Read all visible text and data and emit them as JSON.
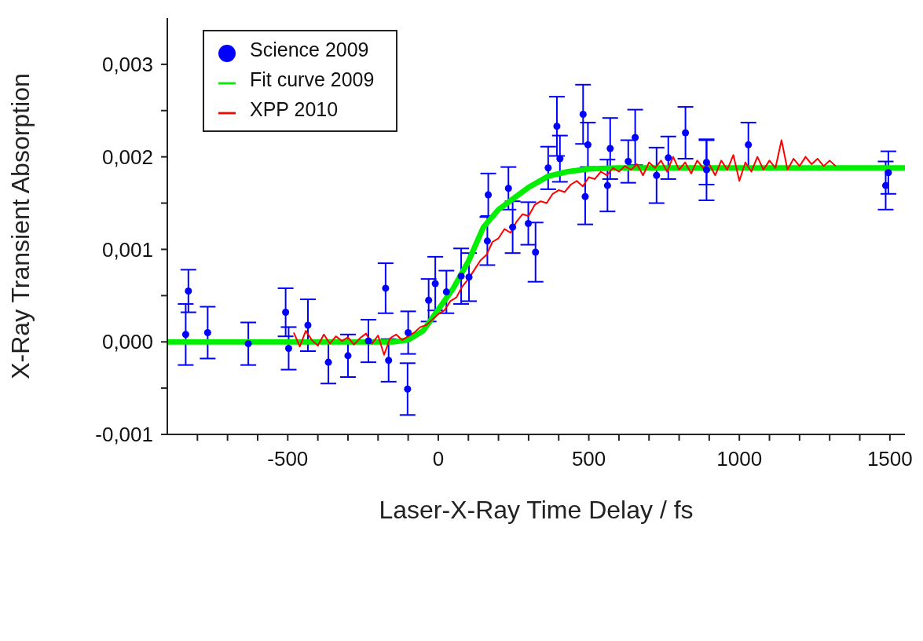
{
  "chart_data": {
    "type": "scatter",
    "xlabel": "Laser-X-Ray Time Delay / fs",
    "ylabel": "X-Ray Transient Absorption",
    "xlim": [
      -900,
      1550
    ],
    "ylim": [
      -0.001,
      0.0035
    ],
    "xticks": [
      {
        "value": -800,
        "label": null
      },
      {
        "value": -700,
        "label": null
      },
      {
        "value": -600,
        "label": null
      },
      -500,
      {
        "value": -400,
        "label": null
      },
      {
        "value": -300,
        "label": null
      },
      {
        "value": -200,
        "label": null
      },
      {
        "value": -100,
        "label": null
      },
      0,
      {
        "value": 100,
        "label": null
      },
      {
        "value": 200,
        "label": null
      },
      {
        "value": 300,
        "label": null
      },
      {
        "value": 400,
        "label": null
      },
      500,
      {
        "value": 600,
        "label": null
      },
      {
        "value": 700,
        "label": null
      },
      {
        "value": 800,
        "label": null
      },
      {
        "value": 900,
        "label": null
      },
      1000,
      {
        "value": 1100,
        "label": null
      },
      {
        "value": 1200,
        "label": null
      },
      {
        "value": 1300,
        "label": null
      },
      {
        "value": 1400,
        "label": null
      },
      1500
    ],
    "yticks": [
      {
        "value": -0.001,
        "label": "-0,001"
      },
      {
        "value": -0.0005,
        "label": null
      },
      {
        "value": 0,
        "label": "0,000"
      },
      {
        "value": 0.0005,
        "label": null
      },
      {
        "value": 0.001,
        "label": "0,001"
      },
      {
        "value": 0.0015,
        "label": null
      },
      {
        "value": 0.002,
        "label": "0,002"
      },
      {
        "value": 0.0025,
        "label": null
      },
      {
        "value": 0.003,
        "label": "0,003"
      }
    ],
    "legend": "top left",
    "marker": "circle",
    "grid": false,
    "series": [
      {
        "name": "Science  2009",
        "color": "#0000ff",
        "x": [
          -839,
          -830,
          -766,
          -631,
          -507,
          -497,
          -433,
          -365,
          -300,
          -232,
          -175,
          -165,
          -102,
          -100,
          -32,
          -10,
          27,
          76,
          102,
          163,
          166,
          233,
          247,
          299,
          323,
          365,
          394,
          404,
          481,
          488,
          497,
          562,
          571,
          631,
          654,
          725,
          764,
          821,
          891,
          891,
          1030,
          1486,
          1495
        ],
        "values": [
          8e-05,
          0.00055,
          0.0001,
          -2e-05,
          0.00032,
          -7e-05,
          0.00018,
          -0.00022,
          -0.00015,
          1e-05,
          0.00058,
          -0.0002,
          -0.00051,
          0.0001,
          0.00045,
          0.00063,
          0.00054,
          0.00071,
          0.0007,
          0.00109,
          0.00159,
          0.00166,
          0.00124,
          0.00128,
          0.00097,
          0.00188,
          0.00233,
          0.00198,
          0.00246,
          0.00157,
          0.00213,
          0.00169,
          0.00209,
          0.00195,
          0.00221,
          0.0018,
          0.00199,
          0.00226,
          0.00194,
          0.00186,
          0.00213,
          0.00169,
          0.00183
        ],
        "errors": [
          0.00033,
          0.00023,
          0.00028,
          0.00023,
          0.00026,
          0.00023,
          0.00028,
          0.00023,
          0.00023,
          0.00023,
          0.00027,
          0.00023,
          0.00028,
          0.00023,
          0.00023,
          0.00029,
          0.00023,
          0.0003,
          0.00026,
          0.00026,
          0.00023,
          0.00023,
          0.00028,
          0.00023,
          0.00032,
          0.00023,
          0.00032,
          0.00025,
          0.00032,
          0.0003,
          0.00024,
          0.00028,
          0.00033,
          0.00023,
          0.0003,
          0.0003,
          0.00023,
          0.00028,
          0.00024,
          0.00033,
          0.00024,
          0.00026,
          0.00023
        ]
      },
      {
        "name": "Fit curve 2009",
        "type": "line",
        "marker": "none",
        "color": "#00ee00",
        "x": [
          -900,
          -150,
          -100,
          -50,
          0,
          50,
          100,
          150,
          200,
          250,
          300,
          365,
          430,
          500,
          600,
          1550
        ],
        "values": [
          0,
          0,
          2e-05,
          0.00012,
          0.00035,
          0.00058,
          0.00087,
          0.00124,
          0.00143,
          0.00155,
          0.00167,
          0.00179,
          0.00184,
          0.00187,
          0.00188,
          0.00188
        ]
      },
      {
        "name": "XPP 2010",
        "type": "line",
        "marker": "none",
        "color": "#ff0000",
        "x": [
          -480,
          -460,
          -440,
          -420,
          -400,
          -380,
          -360,
          -340,
          -320,
          -300,
          -280,
          -260,
          -240,
          -220,
          -200,
          -180,
          -160,
          -140,
          -120,
          -100,
          -80,
          -60,
          -40,
          -20,
          0,
          20,
          40,
          60,
          80,
          100,
          120,
          140,
          160,
          180,
          200,
          220,
          240,
          260,
          280,
          300,
          320,
          340,
          360,
          380,
          400,
          420,
          440,
          460,
          480,
          500,
          520,
          540,
          560,
          580,
          600,
          620,
          640,
          660,
          680,
          700,
          720,
          740,
          760,
          780,
          800,
          820,
          840,
          860,
          880,
          900,
          920,
          940,
          960,
          980,
          1000,
          1020,
          1040,
          1060,
          1080,
          1100,
          1120,
          1140,
          1160,
          1180,
          1200,
          1220,
          1240,
          1260,
          1280,
          1300,
          1320
        ],
        "values": [
          0.0001,
          -5e-05,
          0.00012,
          2e-05,
          -4e-05,
          8e-05,
          -2e-05,
          6e-05,
          1e-05,
          5e-05,
          -3e-05,
          4e-05,
          9e-05,
          -2e-05,
          7e-05,
          -0.00014,
          4e-05,
          8e-05,
          2e-05,
          6e-05,
          0.0001,
          0.00016,
          0.00018,
          0.00024,
          0.0003,
          0.00034,
          0.00044,
          0.00048,
          0.0006,
          0.00068,
          0.00078,
          0.00088,
          0.00094,
          0.00108,
          0.00112,
          0.00122,
          0.00118,
          0.0013,
          0.00138,
          0.00136,
          0.00148,
          0.00152,
          0.0015,
          0.0016,
          0.00164,
          0.00162,
          0.0017,
          0.00174,
          0.00168,
          0.00178,
          0.00176,
          0.00184,
          0.0018,
          0.00188,
          0.00184,
          0.0019,
          0.00186,
          0.00192,
          0.0018,
          0.00194,
          0.00188,
          0.00196,
          0.00184,
          0.002,
          0.00186,
          0.00194,
          0.00182,
          0.00196,
          0.00188,
          0.00192,
          0.0018,
          0.00196,
          0.00186,
          0.00202,
          0.00174,
          0.00194,
          0.00184,
          0.002,
          0.00186,
          0.00196,
          0.00188,
          0.00218,
          0.00186,
          0.00198,
          0.0019,
          0.002,
          0.00192,
          0.00198,
          0.0019,
          0.00196,
          0.0019
        ]
      }
    ]
  }
}
